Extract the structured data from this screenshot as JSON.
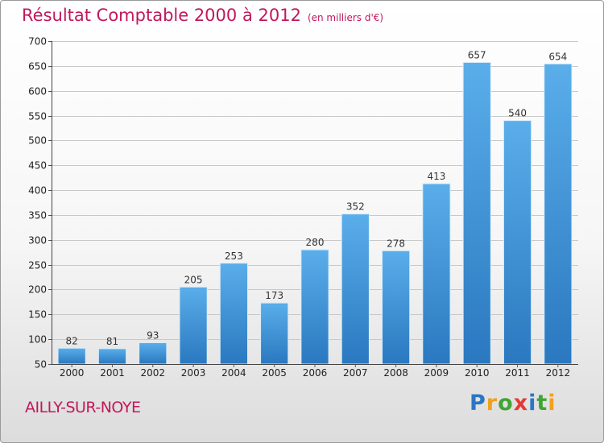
{
  "title": "Résultat Comptable 2000 à 2012",
  "unit_note": "(en milliers d'€)",
  "place_name": "AILLY-SUR-NOYE",
  "logo": {
    "letters": [
      "P",
      "r",
      "o",
      "x",
      "i",
      "t",
      "i"
    ],
    "colors": [
      "#2b76c5",
      "#f2a01f",
      "#3fa535",
      "#e53935",
      "#2b76c5",
      "#3fa535",
      "#f2a01f"
    ]
  },
  "colors": {
    "title": "#c2185b",
    "bar_top": "#5aaeea",
    "bar_bottom": "#2a78c0",
    "grid": "#c8c8c8"
  },
  "chart_data": {
    "type": "bar",
    "title": "Résultat Comptable 2000 à 2012",
    "ylabel": "en milliers d'€",
    "xlabel": "",
    "categories": [
      "2000",
      "2001",
      "2002",
      "2003",
      "2004",
      "2005",
      "2006",
      "2007",
      "2008",
      "2009",
      "2010",
      "2011",
      "2012"
    ],
    "values": [
      82,
      81,
      93,
      205,
      253,
      173,
      280,
      352,
      278,
      413,
      657,
      540,
      654
    ],
    "ylim": [
      50,
      700
    ],
    "yticks": [
      50,
      100,
      150,
      200,
      250,
      300,
      350,
      400,
      450,
      500,
      550,
      600,
      650,
      700
    ],
    "grid": true
  }
}
